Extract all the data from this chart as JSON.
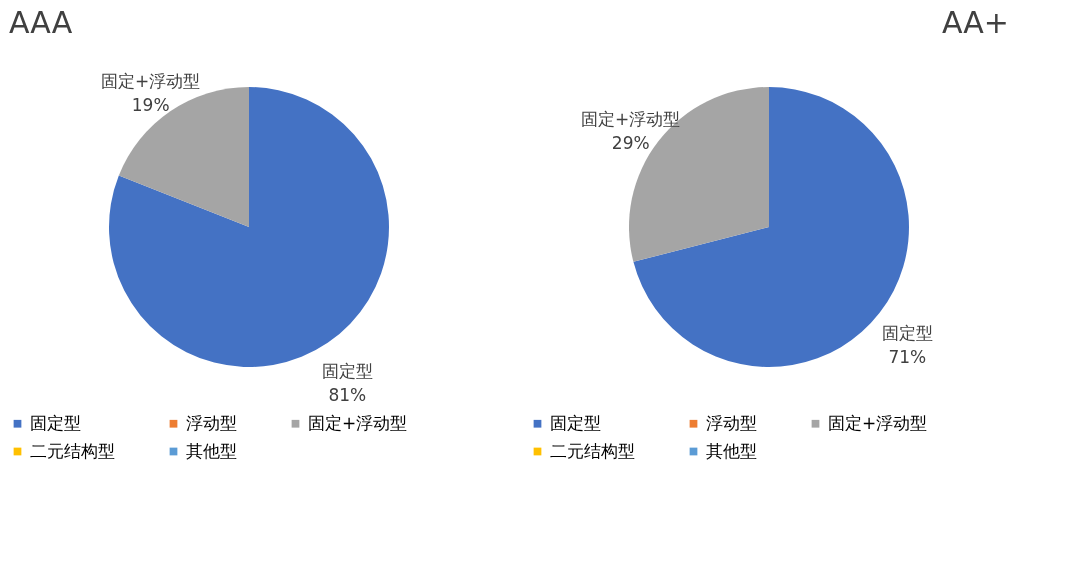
{
  "chart_data": [
    {
      "type": "pie",
      "title": "AAA",
      "categories": [
        "固定型",
        "浮动型",
        "固定+浮动型",
        "二元结构型",
        "其他型"
      ],
      "values": [
        81,
        0,
        19,
        0,
        0
      ],
      "colors": [
        "#4472c4",
        "#ed7d31",
        "#a5a5a5",
        "#ffc000",
        "#5b9bd5"
      ],
      "value_labels": [
        "81%",
        null,
        "19%",
        null,
        null
      ],
      "legend": "bottom"
    },
    {
      "type": "pie",
      "title": "AA+",
      "categories": [
        "固定型",
        "浮动型",
        "固定+浮动型",
        "二元结构型",
        "其他型"
      ],
      "values": [
        71,
        0,
        29,
        0,
        0
      ],
      "colors": [
        "#4472c4",
        "#ed7d31",
        "#a5a5a5",
        "#ffc000",
        "#5b9bd5"
      ],
      "value_labels": [
        "71%",
        null,
        "29%",
        null,
        null
      ],
      "legend": "bottom"
    }
  ]
}
